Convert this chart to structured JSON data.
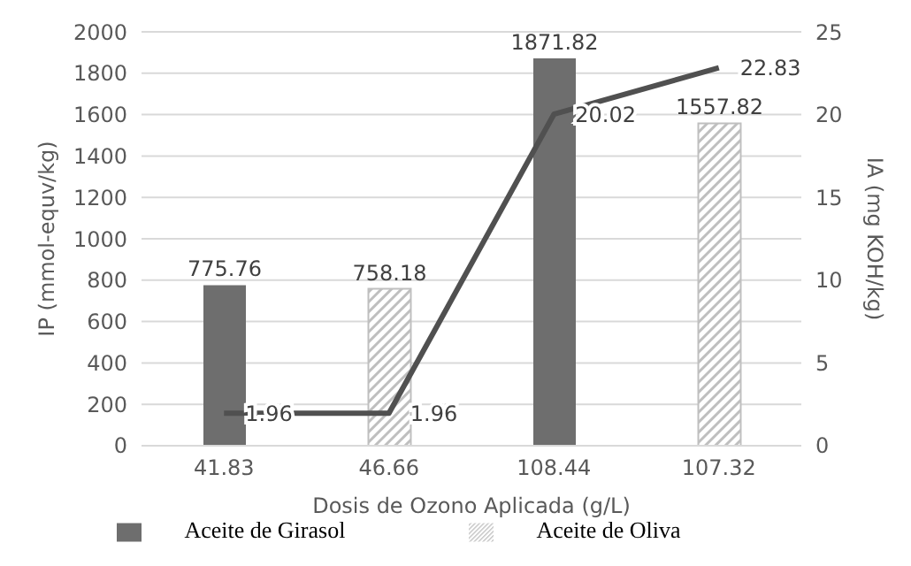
{
  "chart_data": {
    "type": "bar",
    "xlabel": "Dosis de Ozono Aplicada (g/L)",
    "ylabel": "IP (mmol-equv/kg)",
    "y2label": "IA (mg KOH/kg)",
    "categories": [
      "41.83",
      "46.66",
      "108.44",
      "107.32"
    ],
    "series": [
      {
        "name": "Aceite de Girasol",
        "color": "#6e6e6e",
        "values": [
          775.76,
          null,
          1871.82,
          null
        ]
      },
      {
        "name": "Aceite de Oliva",
        "color": "#bfbfbf",
        "values": [
          null,
          758.18,
          null,
          1557.82
        ]
      },
      {
        "type": "line",
        "axis": "y2",
        "color": "#505050",
        "values": [
          1.96,
          1.96,
          20.02,
          22.83
        ]
      }
    ],
    "stacked": true,
    "ylim": [
      0,
      2000
    ],
    "yticks": [
      0,
      200,
      400,
      600,
      800,
      1000,
      1200,
      1400,
      1600,
      1800,
      2000
    ],
    "y2lim": [
      0,
      25
    ],
    "y2ticks": [
      0,
      5,
      10,
      15,
      20,
      25
    ],
    "grid": "y",
    "legend": "bottom",
    "data_labels": true,
    "marker": "none",
    "line_style": "solid"
  }
}
